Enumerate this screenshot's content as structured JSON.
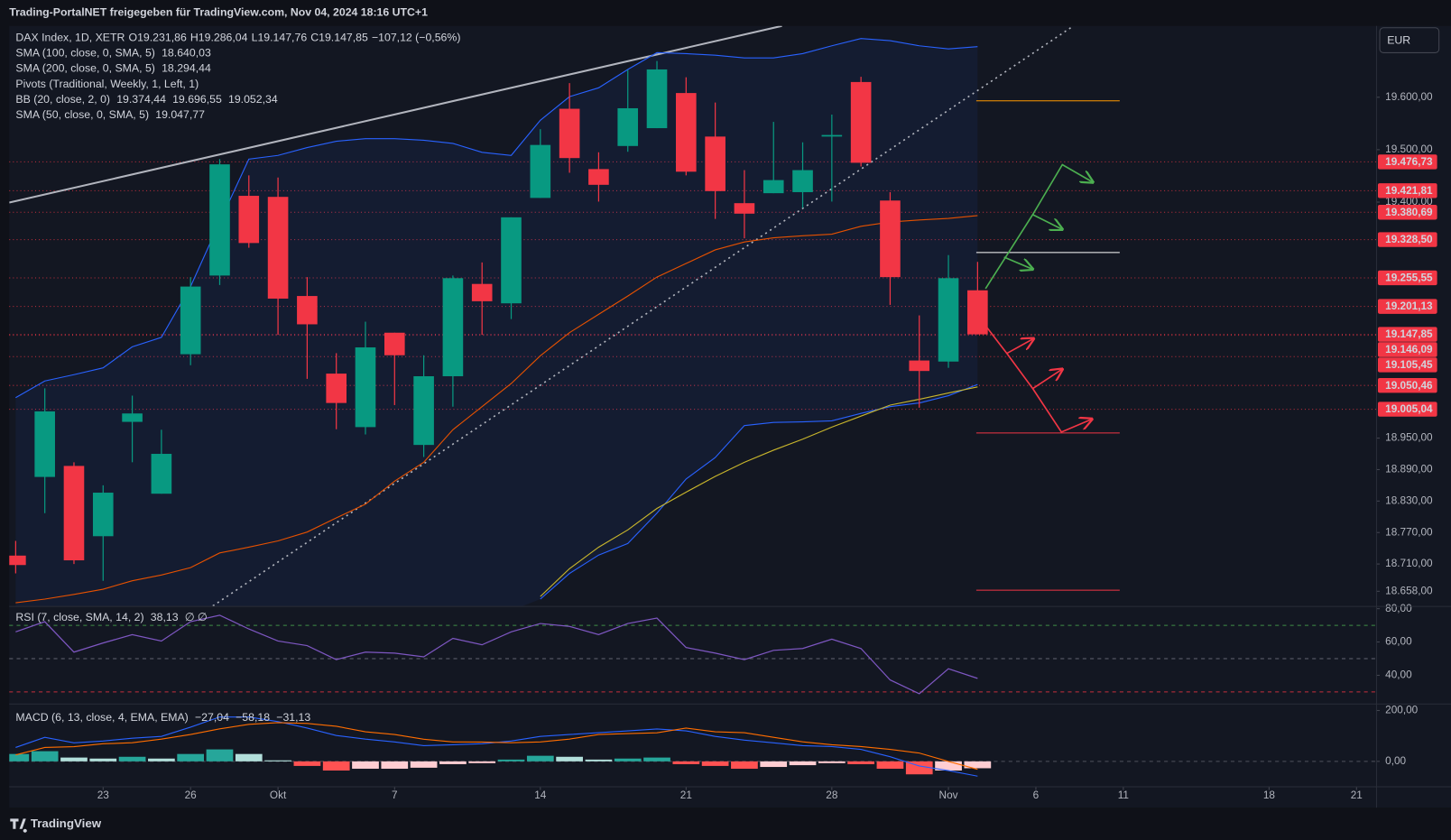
{
  "header": "Trading-PortalNET freigegeben für TradingView.com, Nov 04, 2024 18:16 UTC+1",
  "currency": "EUR",
  "brand": "TradingView",
  "chart_data": [
    {
      "type": "candlestick",
      "title": "DAX Index, 1D, XETR",
      "ohlc_labels": [
        "O19.231,86",
        "H19.286,04",
        "L19.147,76",
        "C19.147,85",
        "−107,12 (−0,56%)"
      ],
      "up_color": "#089981",
      "down_color": "#f23645",
      "x": [
        0,
        1,
        2,
        3,
        4,
        5,
        6,
        7,
        8,
        9,
        10,
        11,
        12,
        13,
        14,
        15,
        16,
        17,
        18,
        19,
        20,
        21,
        22,
        23,
        24,
        25,
        26,
        27,
        28,
        29,
        30,
        31,
        32,
        33
      ],
      "open": [
        18726,
        18876,
        18897,
        18763,
        18981,
        18844,
        19110,
        19260,
        19412,
        19410,
        19221,
        19073,
        18971,
        19151,
        18937,
        19068,
        19244,
        19207,
        19408,
        19578,
        19463,
        19507,
        19541,
        19608,
        19525,
        19398,
        19417,
        19419,
        19525,
        19629,
        19403,
        19098,
        19096,
        19231.86
      ],
      "high": [
        18754,
        19045,
        18904,
        18860,
        19031,
        18966,
        19257,
        19482,
        19451,
        19447,
        19257,
        19112,
        19172,
        19151,
        19108,
        19260,
        19285,
        19371,
        19539,
        19627,
        19495,
        19652,
        19669,
        19638,
        19590,
        19461,
        19553,
        19514,
        19567,
        19639,
        19419,
        19184,
        19299,
        19286.04
      ],
      "low": [
        18692,
        18807,
        18710,
        18678,
        18904,
        18844,
        19089,
        19242,
        19313,
        19147,
        19063,
        18967,
        18957,
        19013,
        18914,
        19010,
        19147,
        19177,
        19408,
        19456,
        19401,
        19496,
        19541,
        19451,
        19368,
        19331,
        19417,
        19389,
        19401,
        19468,
        19204,
        19008,
        19084,
        19147.76
      ],
      "close": [
        18708,
        19001,
        18717,
        18846,
        18997,
        18920,
        19239,
        19472,
        19322,
        19216,
        19167,
        19017,
        19123,
        19108,
        19068,
        19255,
        19211,
        19371,
        19509,
        19484,
        19433,
        19579,
        19653,
        19458,
        19421,
        19378,
        19442,
        19461,
        19528,
        19475,
        19257,
        19078,
        19255,
        19147.85
      ],
      "series": [
        {
          "color": "#2962ff",
          "values": [
            19027,
            19059,
            19071,
            19084,
            19124,
            19142,
            19239,
            19362,
            19482,
            19489,
            19504,
            19516,
            19521,
            19521,
            19518,
            19512,
            19495,
            19489,
            19556,
            19601,
            19618,
            19653,
            19685,
            19683,
            19680,
            19675,
            19675,
            19683,
            19698,
            19712,
            19708,
            19698,
            19692,
            19696.55
          ]
        },
        {
          "color": "#e65100",
          "values": [
            18636,
            18643,
            18652,
            18662,
            18678,
            18689,
            18703,
            18731,
            18742,
            18754,
            18771,
            18798,
            18824,
            18868,
            18904,
            18966,
            19010,
            19054,
            19107,
            19151,
            19186,
            19221,
            19257,
            19283,
            19309,
            19324,
            19332,
            19336,
            19339,
            19354,
            19362,
            19366,
            19369,
            19374.44
          ]
        },
        {
          "color": "#2962ff",
          "values": [
            null,
            null,
            null,
            null,
            null,
            null,
            null,
            null,
            null,
            null,
            null,
            null,
            null,
            null,
            null,
            null,
            null,
            null,
            18643,
            18692,
            18727,
            18749,
            18807,
            18872,
            18913,
            18974,
            18980,
            18981,
            18983,
            18997,
            19010,
            19017,
            19031,
            19052.34
          ]
        },
        {
          "color": "#c9b62c",
          "values": [
            null,
            null,
            null,
            null,
            null,
            null,
            null,
            null,
            null,
            null,
            null,
            null,
            null,
            null,
            null,
            null,
            null,
            null,
            18648,
            18701,
            18742,
            18775,
            18816,
            18847,
            18877,
            18904,
            18927,
            18948,
            18971,
            18992,
            19013,
            19024,
            19036,
            19047.77
          ]
        }
      ],
      "indicators": [
        {
          "name": "SMA (100, close, 0, SMA, 5)",
          "readings": [
            "18.640,03"
          ],
          "colors": [
            "#ffeb3b"
          ]
        },
        {
          "name": "SMA (200, close, 0, SMA, 5)",
          "readings": [
            "18.294,44"
          ],
          "colors": [
            "#ffeb3b"
          ]
        },
        {
          "name": "Pivots (Traditional, Weekly, 1, Left, 1)",
          "readings": [],
          "colors": []
        },
        {
          "name": "BB (20, close, 2, 0)",
          "readings": [
            "19.374,44",
            "19.696,55",
            "19.052,34"
          ],
          "colors": [
            "#e65100",
            "#2962ff",
            "#2962ff"
          ]
        },
        {
          "name": "SMA (50, close, 0, SMA, 5)",
          "readings": [
            "19.047,77"
          ],
          "colors": [
            "#ffeb3b"
          ]
        }
      ],
      "levels": [
        {
          "value": 19476.73,
          "label": "19.476,73"
        },
        {
          "value": 19421.81,
          "label": "19.421,81"
        },
        {
          "value": 19380.69,
          "label": "19.380,69"
        },
        {
          "value": 19328.5,
          "label": "19.328,50"
        },
        {
          "value": 19255.55,
          "label": "19.255,55"
        },
        {
          "value": 19201.13,
          "label": "19.201,13"
        },
        {
          "value": 19147.85,
          "label": "19.147,85"
        },
        {
          "value": 19146.09,
          "label": "19.146,09"
        },
        {
          "value": 19105.45,
          "label": "19.105,45"
        },
        {
          "value": 19050.46,
          "label": "19.050,46"
        },
        {
          "value": 19005.04,
          "label": "19.005,04"
        }
      ],
      "level_color": "#f23645",
      "xlim": [
        -0.22,
        46.67
      ],
      "xticks": [
        {
          "value": 3,
          "label": "23"
        },
        {
          "value": 6,
          "label": "26"
        },
        {
          "value": 9,
          "label": "Okt"
        },
        {
          "value": 13,
          "label": "7"
        },
        {
          "value": 18,
          "label": "14"
        },
        {
          "value": 23,
          "label": "21"
        },
        {
          "value": 28,
          "label": "28"
        },
        {
          "value": 32,
          "label": "Nov"
        },
        {
          "value": 35,
          "label": "6"
        },
        {
          "value": 38,
          "label": "11"
        },
        {
          "value": 43,
          "label": "18"
        },
        {
          "value": 46,
          "label": "21"
        }
      ],
      "ylim": [
        18630,
        19736
      ],
      "yticks": [
        {
          "value": 19600,
          "label": "19.600,00"
        },
        {
          "value": 19500,
          "label": "19.500,00"
        },
        {
          "value": 19400,
          "label": "19.400,00"
        },
        {
          "value": 18950,
          "label": "18.950,00"
        },
        {
          "value": 18890,
          "label": "18.890,00"
        },
        {
          "value": 18830,
          "label": "18.830,00"
        },
        {
          "value": 18770,
          "label": "18.770,00"
        },
        {
          "value": 18710,
          "label": "18.710,00"
        },
        {
          "value": 18658,
          "label": "18.658,00"
        }
      ]
    },
    {
      "type": "line",
      "title": "RSI (7, close, SMA, 14, 2)",
      "readings": [
        "38,13",
        "∅ ∅"
      ],
      "x": [
        0,
        1,
        2,
        3,
        4,
        5,
        6,
        7,
        8,
        9,
        10,
        11,
        12,
        13,
        14,
        15,
        16,
        17,
        18,
        19,
        20,
        21,
        22,
        23,
        24,
        25,
        26,
        27,
        28,
        29,
        30,
        31,
        32,
        33
      ],
      "values": [
        66.1,
        72.2,
        53.9,
        59.4,
        64.4,
        60.6,
        72.2,
        76.1,
        67.8,
        60.6,
        57.8,
        49.4,
        53.9,
        53.3,
        51.1,
        62.2,
        58.3,
        66.1,
        71.1,
        69.4,
        64.4,
        71.1,
        74.4,
        56.7,
        53.3,
        49.4,
        55,
        56.1,
        61.7,
        56.1,
        37.2,
        28.9,
        43.9,
        38.13
      ],
      "color": "#7e57c2",
      "bands": [
        {
          "value": 70,
          "color": "#4caf50"
        },
        {
          "value": 50,
          "color": "#787b86"
        },
        {
          "value": 30,
          "color": "#f23645"
        }
      ],
      "xlim": [
        -0.22,
        46.67
      ],
      "ylim": [
        23.3,
        81.1
      ],
      "yticks": [
        {
          "value": 80,
          "label": "80,00"
        },
        {
          "value": 60,
          "label": "60,00"
        },
        {
          "value": 40,
          "label": "40,00"
        }
      ]
    },
    {
      "type": "macd",
      "title": "MACD (6, 13, close, 4, EMA, EMA)",
      "readings": [
        "−27,04",
        "−58,18",
        "−31,13"
      ],
      "reading_colors": [
        "#d1d4dc",
        "#2962ff",
        "#ff6d00"
      ],
      "x": [
        0,
        1,
        2,
        3,
        4,
        5,
        6,
        7,
        8,
        9,
        10,
        11,
        12,
        13,
        14,
        15,
        16,
        17,
        18,
        19,
        20,
        21,
        22,
        23,
        24,
        25,
        26,
        27,
        28,
        29,
        30,
        31,
        32,
        33
      ],
      "histogram": [
        29,
        40,
        15,
        11,
        18,
        11,
        29,
        47,
        29,
        4,
        -18,
        -36,
        -29,
        -29,
        -25,
        -11,
        -7,
        7,
        22,
        18,
        7,
        11,
        15,
        -11,
        -18,
        -29,
        -22,
        -15,
        -7,
        -11,
        -29,
        -51,
        -36,
        -27.04
      ],
      "histogram_colors": {
        "grow_above": "#26a69a",
        "fall_above": "#b2dfdb",
        "grow_below": "#ffcdd2",
        "fall_below": "#ff5252"
      },
      "series": [
        {
          "color": "#2962ff",
          "values": [
            54.5,
            94.5,
            72.7,
            80,
            90.9,
            98.2,
            134.5,
            174.5,
            174.5,
            156.4,
            130.9,
            101.8,
            87.3,
            76.4,
            61.8,
            65.5,
            69.1,
            80,
            98.2,
            105.5,
            112.7,
            120,
            127.3,
            120,
            98.2,
            83.6,
            72.7,
            61.8,
            58.2,
            47.3,
            18.2,
            -18.2,
            -36.4,
            -58.18
          ]
        },
        {
          "color": "#ff6d00",
          "values": [
            25.5,
            54.5,
            57.7,
            69,
            72.9,
            87.2,
            105.5,
            127.5,
            145.5,
            152.4,
            148.9,
            137.8,
            116.3,
            105.4,
            86.8,
            76.5,
            76.1,
            73,
            76.2,
            87.5,
            105.7,
            109,
            112.3,
            131,
            116.2,
            112.6,
            94.7,
            76.8,
            65.2,
            58.3,
            47.2,
            32.8,
            -0.4,
            -31.13
          ]
        }
      ],
      "xlim": [
        -0.22,
        46.67
      ],
      "ylim": [
        -98.2,
        221.8
      ],
      "yticks": [
        {
          "value": 200,
          "label": "200,00"
        },
        {
          "value": 0,
          "label": "0,00"
        }
      ]
    }
  ]
}
